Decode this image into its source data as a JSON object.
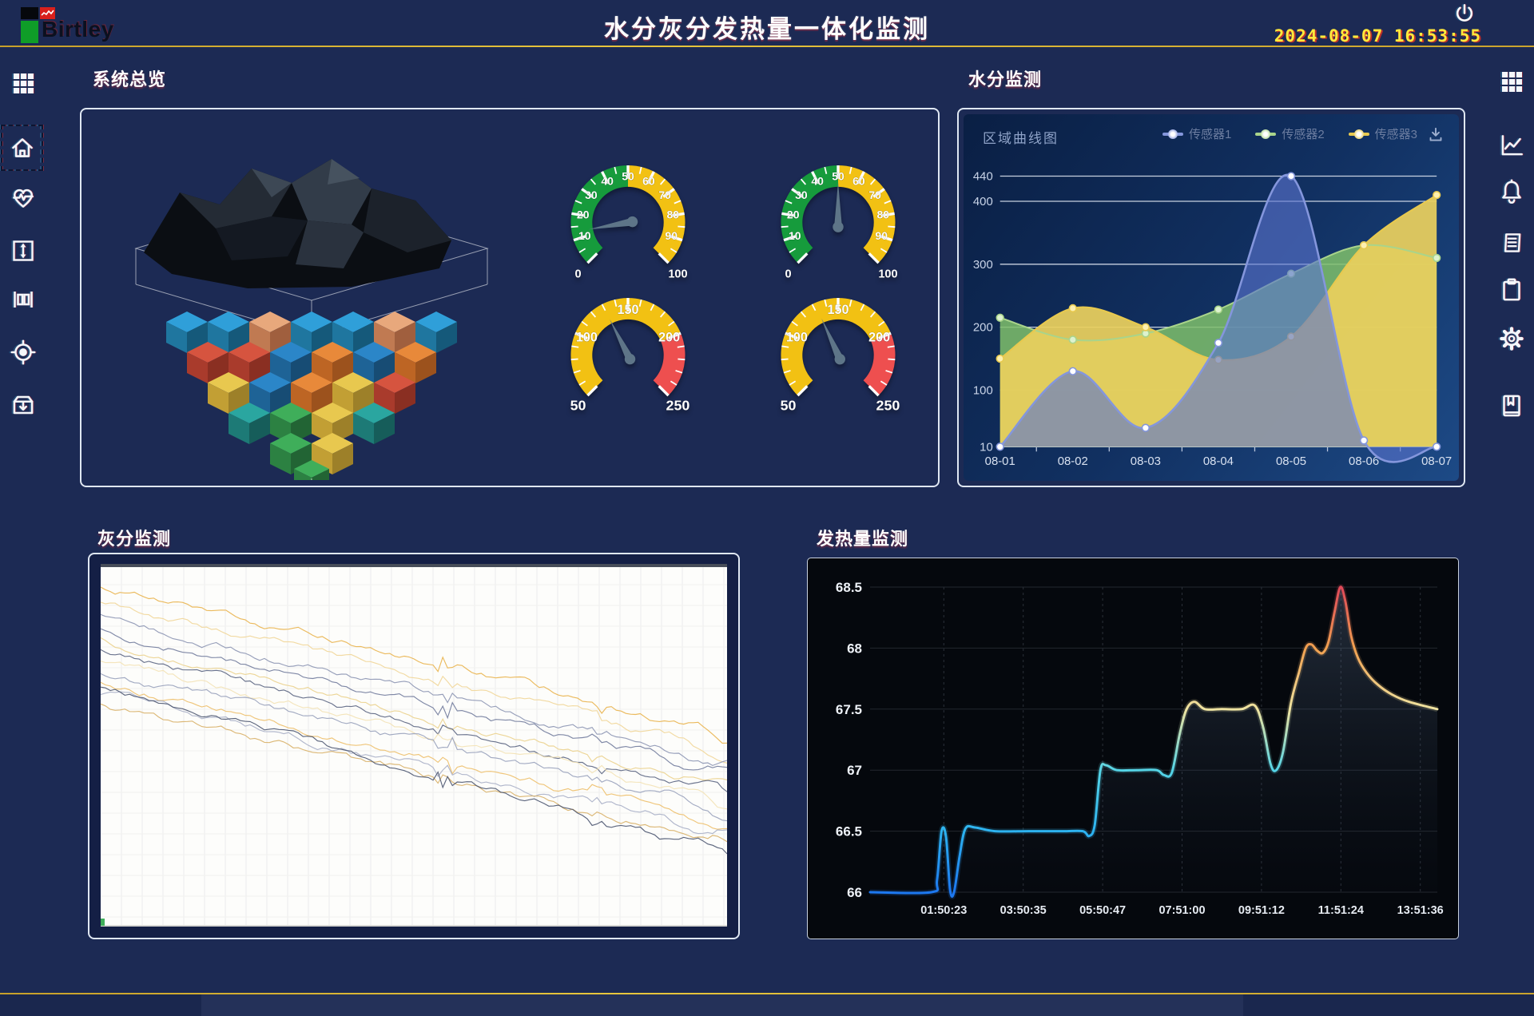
{
  "header": {
    "logo_text": "Birtley",
    "title": "水分灰分发热量一体化监测",
    "datetime": "2024-08-07 16:53:55",
    "power_icon": "power-icon"
  },
  "sidebar_left": {
    "items": [
      {
        "icon": "apps-grid-icon",
        "selected": false
      },
      {
        "icon": "home-icon",
        "selected": true
      },
      {
        "icon": "heart-pulse-icon",
        "selected": false
      },
      {
        "icon": "vertical-range-icon",
        "selected": false
      },
      {
        "icon": "histogram-icon",
        "selected": false
      },
      {
        "icon": "target-icon",
        "selected": false
      },
      {
        "icon": "storage-box-icon",
        "selected": false
      }
    ]
  },
  "sidebar_right": {
    "items": [
      {
        "icon": "apps-grid-icon"
      },
      {
        "icon": "trend-chart-icon"
      },
      {
        "icon": "bell-icon"
      },
      {
        "icon": "report-icon"
      },
      {
        "icon": "clipboard-icon"
      },
      {
        "icon": "gear-icon"
      },
      {
        "icon": "manual-book-icon"
      }
    ]
  },
  "panels": {
    "overview": {
      "title": "系统总览"
    },
    "moisture": {
      "title": "水分监测",
      "chart_title": "区域曲线图",
      "download_icon": "download-icon"
    },
    "ash": {
      "title": "灰分监测"
    },
    "calorific": {
      "title": "发热量监测"
    }
  },
  "gauges": [
    {
      "name": "moisture-gauge-1",
      "min": 0,
      "max": 100,
      "value": 13,
      "segments": [
        {
          "from": 0,
          "to": 50,
          "color": "#169b3c"
        },
        {
          "from": 50,
          "to": 100,
          "color": "#f2c113"
        }
      ],
      "major_tick": 10,
      "minor_tick": 5,
      "band_labels": [
        10,
        20,
        30,
        40,
        50,
        60,
        70,
        80,
        90
      ],
      "end_labels": [
        0,
        100
      ]
    },
    {
      "name": "moisture-gauge-2",
      "min": 0,
      "max": 100,
      "value": 50,
      "segments": [
        {
          "from": 0,
          "to": 50,
          "color": "#169b3c"
        },
        {
          "from": 50,
          "to": 100,
          "color": "#f2c113"
        }
      ],
      "major_tick": 10,
      "minor_tick": 5,
      "band_labels": [
        10,
        20,
        30,
        40,
        50,
        60,
        70,
        80,
        90
      ],
      "end_labels": [
        0,
        100
      ]
    },
    {
      "name": "ash-gauge-1",
      "min": 50,
      "max": 250,
      "value": 130,
      "segments": [
        {
          "from": 50,
          "to": 200,
          "color": "#f2c113"
        },
        {
          "from": 200,
          "to": 250,
          "color": "#ee4f4f"
        }
      ],
      "major_tick": 50,
      "minor_tick": 10,
      "band_labels": [
        100,
        150,
        200
      ],
      "end_labels": [
        50,
        250
      ]
    },
    {
      "name": "ash-gauge-2",
      "min": 50,
      "max": 250,
      "value": 132,
      "segments": [
        {
          "from": 50,
          "to": 200,
          "color": "#f2c113"
        },
        {
          "from": 200,
          "to": 250,
          "color": "#ee4f4f"
        }
      ],
      "major_tick": 50,
      "minor_tick": 10,
      "band_labels": [
        100,
        150,
        200
      ],
      "end_labels": [
        50,
        250
      ]
    }
  ],
  "chart_data": [
    {
      "id": "moisture_area_chart",
      "type": "area",
      "title": "区域曲线图",
      "categories": [
        "08-01",
        "08-02",
        "08-03",
        "08-04",
        "08-05",
        "08-06",
        "08-07"
      ],
      "ylim": [
        10,
        440
      ],
      "yticks": [
        10,
        100,
        200,
        300,
        400,
        440
      ],
      "grid": true,
      "legend_position": "top-right",
      "series": [
        {
          "name": "传感器1",
          "color": "#8496dc",
          "fill": "#5b74cf",
          "values": [
            10,
            130,
            40,
            175,
            440,
            20,
            10
          ]
        },
        {
          "name": "传感器2",
          "color": "#a9d48b",
          "fill": "#7fbf6b",
          "values": [
            215,
            180,
            190,
            228,
            285,
            330,
            310
          ]
        },
        {
          "name": "传感器3",
          "color": "#e7c94f",
          "fill": "#ead05e",
          "values": [
            150,
            230,
            200,
            148,
            185,
            330,
            410
          ]
        }
      ]
    },
    {
      "id": "ash_trend_chart",
      "type": "line",
      "background": "#ffffff",
      "grid": true,
      "lines": [
        {
          "color": "#e9b44f",
          "start_pct": 6,
          "end_pct": 47
        },
        {
          "color": "#f1d79a",
          "start_pct": 10,
          "end_pct": 52
        },
        {
          "color": "#8e97b4",
          "start_pct": 14,
          "end_pct": 55
        },
        {
          "color": "#747e9e",
          "start_pct": 18,
          "end_pct": 58
        },
        {
          "color": "#ecd28f",
          "start_pct": 21,
          "end_pct": 61
        },
        {
          "color": "#5d6783",
          "start_pct": 24,
          "end_pct": 64
        },
        {
          "color": "#f3e3b6",
          "start_pct": 27,
          "end_pct": 66
        },
        {
          "color": "#9aa3bd",
          "start_pct": 30,
          "end_pct": 68
        },
        {
          "color": "#eec06e",
          "start_pct": 33,
          "end_pct": 71
        },
        {
          "color": "#aab1c8",
          "start_pct": 36,
          "end_pct": 74
        },
        {
          "color": "#d9b26a",
          "start_pct": 39,
          "end_pct": 77
        },
        {
          "color": "#4e5872",
          "start_pct": 34,
          "end_pct": 80
        }
      ]
    },
    {
      "id": "calorific_line_chart",
      "type": "line",
      "background": "#05080d",
      "ylim": [
        66,
        68.5
      ],
      "yticks": [
        66,
        66.5,
        67,
        67.5,
        68,
        68.5
      ],
      "xticks": [
        "01:50:23",
        "03:50:35",
        "05:50:47",
        "07:51:00",
        "09:51:12",
        "11:51:24",
        "13:51:36"
      ],
      "xtick_pct": [
        13,
        27,
        41,
        55,
        69,
        83,
        97
      ],
      "gradient_stops": [
        {
          "value": 66,
          "color": "#1d78f0"
        },
        {
          "value": 66.5,
          "color": "#2db3f0"
        },
        {
          "value": 67,
          "color": "#55d4e6"
        },
        {
          "value": 67.5,
          "color": "#efe3a0"
        },
        {
          "value": 68,
          "color": "#f0a050"
        },
        {
          "value": 68.5,
          "color": "#e04858"
        }
      ],
      "points": [
        [
          0,
          66
        ],
        [
          10.8,
          66
        ],
        [
          11.8,
          66.1
        ],
        [
          12.6,
          66.5
        ],
        [
          13.4,
          66.45
        ],
        [
          14.1,
          66.02
        ],
        [
          14.8,
          66
        ],
        [
          15.8,
          66.3
        ],
        [
          16.8,
          66.52
        ],
        [
          18.5,
          66.53
        ],
        [
          22,
          66.5
        ],
        [
          28,
          66.5
        ],
        [
          34,
          66.5
        ],
        [
          37.5,
          66.5
        ],
        [
          38.6,
          66.46
        ],
        [
          39.6,
          66.55
        ],
        [
          40.6,
          67
        ],
        [
          41.6,
          67.04
        ],
        [
          43.5,
          67
        ],
        [
          47,
          67
        ],
        [
          50.5,
          67
        ],
        [
          51.8,
          66.96
        ],
        [
          53.2,
          66.98
        ],
        [
          54.6,
          67.3
        ],
        [
          55.8,
          67.5
        ],
        [
          57.2,
          67.56
        ],
        [
          59,
          67.5
        ],
        [
          62,
          67.5
        ],
        [
          65.5,
          67.5
        ],
        [
          67.8,
          67.53
        ],
        [
          69.3,
          67.35
        ],
        [
          70.6,
          67.05
        ],
        [
          71.6,
          67
        ],
        [
          72.8,
          67.15
        ],
        [
          74.2,
          67.55
        ],
        [
          75.6,
          67.8
        ],
        [
          76.8,
          68
        ],
        [
          77.8,
          68.03
        ],
        [
          78.8,
          67.98
        ],
        [
          79.8,
          67.96
        ],
        [
          80.8,
          68.05
        ],
        [
          81.9,
          68.3
        ],
        [
          82.9,
          68.5
        ],
        [
          83.8,
          68.38
        ],
        [
          84.8,
          68.1
        ],
        [
          86,
          67.92
        ],
        [
          87.5,
          67.8
        ],
        [
          89.5,
          67.7
        ],
        [
          92,
          67.62
        ],
        [
          95,
          67.56
        ],
        [
          100,
          67.5
        ]
      ]
    }
  ],
  "colors": {
    "background": "#1c2a54",
    "gold_line": "#d8b427",
    "panel_border": "#dfe7f2",
    "datetime": "#ffe93c",
    "needle": "#5e7588"
  }
}
